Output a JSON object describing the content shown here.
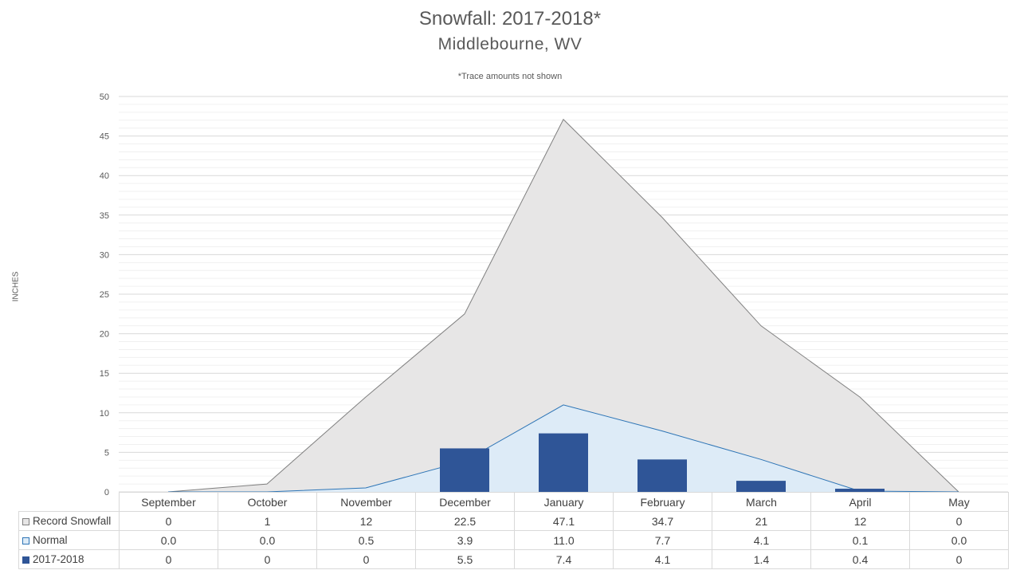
{
  "chart_data": {
    "type": "bar",
    "title": "Snowfall: 2017-2018*",
    "subtitle": "Middlebourne, WV",
    "note": "*Trace amounts not shown",
    "ylabel": "INCHES",
    "ylim": [
      0,
      50
    ],
    "yticks": [
      0,
      5,
      10,
      15,
      20,
      25,
      30,
      35,
      40,
      45,
      50
    ],
    "categories": [
      "September",
      "October",
      "November",
      "December",
      "January",
      "February",
      "March",
      "April",
      "May"
    ],
    "series": [
      {
        "name": "Record Snowfall",
        "kind": "area",
        "color": "#e7e6e6",
        "edge": "#808080",
        "values": [
          0,
          1,
          12,
          22.5,
          47.1,
          34.7,
          21,
          12,
          0
        ],
        "labels": [
          "0",
          "1",
          "12",
          "22.5",
          "47.1",
          "34.7",
          "21",
          "12",
          "0"
        ]
      },
      {
        "name": "Normal",
        "kind": "area",
        "color": "#ddebf7",
        "edge": "#2e75b6",
        "values": [
          0.0,
          0.0,
          0.5,
          3.9,
          11.0,
          7.7,
          4.1,
          0.1,
          0.0
        ],
        "labels": [
          "0.0",
          "0.0",
          "0.5",
          "3.9",
          "11.0",
          "7.7",
          "4.1",
          "0.1",
          "0.0"
        ]
      },
      {
        "name": "2017-2018",
        "kind": "bar",
        "color": "#2f5597",
        "values": [
          0,
          0,
          0,
          5.5,
          7.4,
          4.1,
          1.4,
          0.4,
          0
        ],
        "labels": [
          "0",
          "0",
          "0",
          "5.5",
          "7.4",
          "4.1",
          "1.4",
          "0.4",
          "0"
        ]
      }
    ],
    "grid": true,
    "legend": "data-table"
  }
}
